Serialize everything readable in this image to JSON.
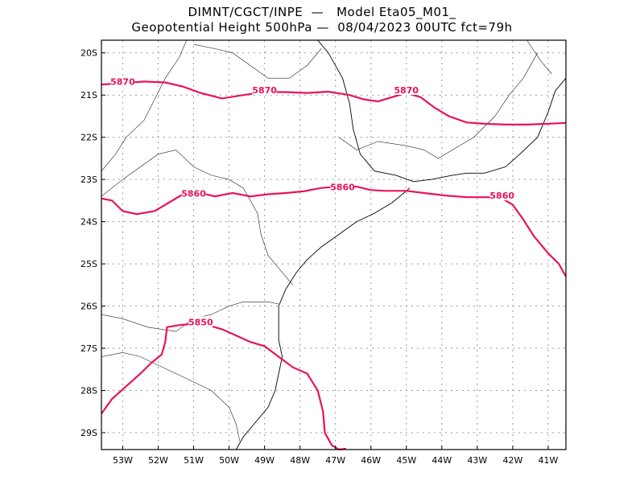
{
  "title": {
    "line1": "DIMNT/CGCT/INPE  —   Model Eta05_M01_",
    "line2": "Geopotential Height 500hPa —  08/04/2023 00UTC fct=79h"
  },
  "map": {
    "lon_min": -53.6,
    "lon_max": -40.5,
    "lat_min": -29.4,
    "lat_max": -19.7,
    "lon_ticks": [
      {
        "value": -53,
        "label": "53W"
      },
      {
        "value": -52,
        "label": "52W"
      },
      {
        "value": -51,
        "label": "51W"
      },
      {
        "value": -50,
        "label": "50W"
      },
      {
        "value": -49,
        "label": "49W"
      },
      {
        "value": -48,
        "label": "48W"
      },
      {
        "value": -47,
        "label": "47W"
      },
      {
        "value": -46,
        "label": "46W"
      },
      {
        "value": -45,
        "label": "45W"
      },
      {
        "value": -44,
        "label": "44W"
      },
      {
        "value": -43,
        "label": "43W"
      },
      {
        "value": -42,
        "label": "42W"
      },
      {
        "value": -41,
        "label": "41W"
      }
    ],
    "lat_ticks": [
      {
        "value": -20,
        "label": "20S"
      },
      {
        "value": -21,
        "label": "21S"
      },
      {
        "value": -22,
        "label": "22S"
      },
      {
        "value": -23,
        "label": "23S"
      },
      {
        "value": -24,
        "label": "24S"
      },
      {
        "value": -25,
        "label": "25S"
      },
      {
        "value": -26,
        "label": "26S"
      },
      {
        "value": -27,
        "label": "27S"
      },
      {
        "value": -28,
        "label": "28S"
      },
      {
        "value": -29,
        "label": "29S"
      }
    ],
    "colors": {
      "contour": "#e8135c",
      "coast": "#000000",
      "grid": "#9a9a9a"
    },
    "contours": [
      {
        "value": "5870",
        "label_positions": [
          [
            -53.0,
            -20.7
          ],
          [
            -49.0,
            -20.9
          ],
          [
            -45.0,
            -20.9
          ]
        ]
      },
      {
        "value": "5860",
        "label_positions": [
          [
            -51.0,
            -23.35
          ],
          [
            -46.8,
            -23.2
          ],
          [
            -42.3,
            -23.4
          ]
        ]
      },
      {
        "value": "5850",
        "label_positions": [
          [
            -50.8,
            -26.4
          ]
        ]
      }
    ]
  }
}
